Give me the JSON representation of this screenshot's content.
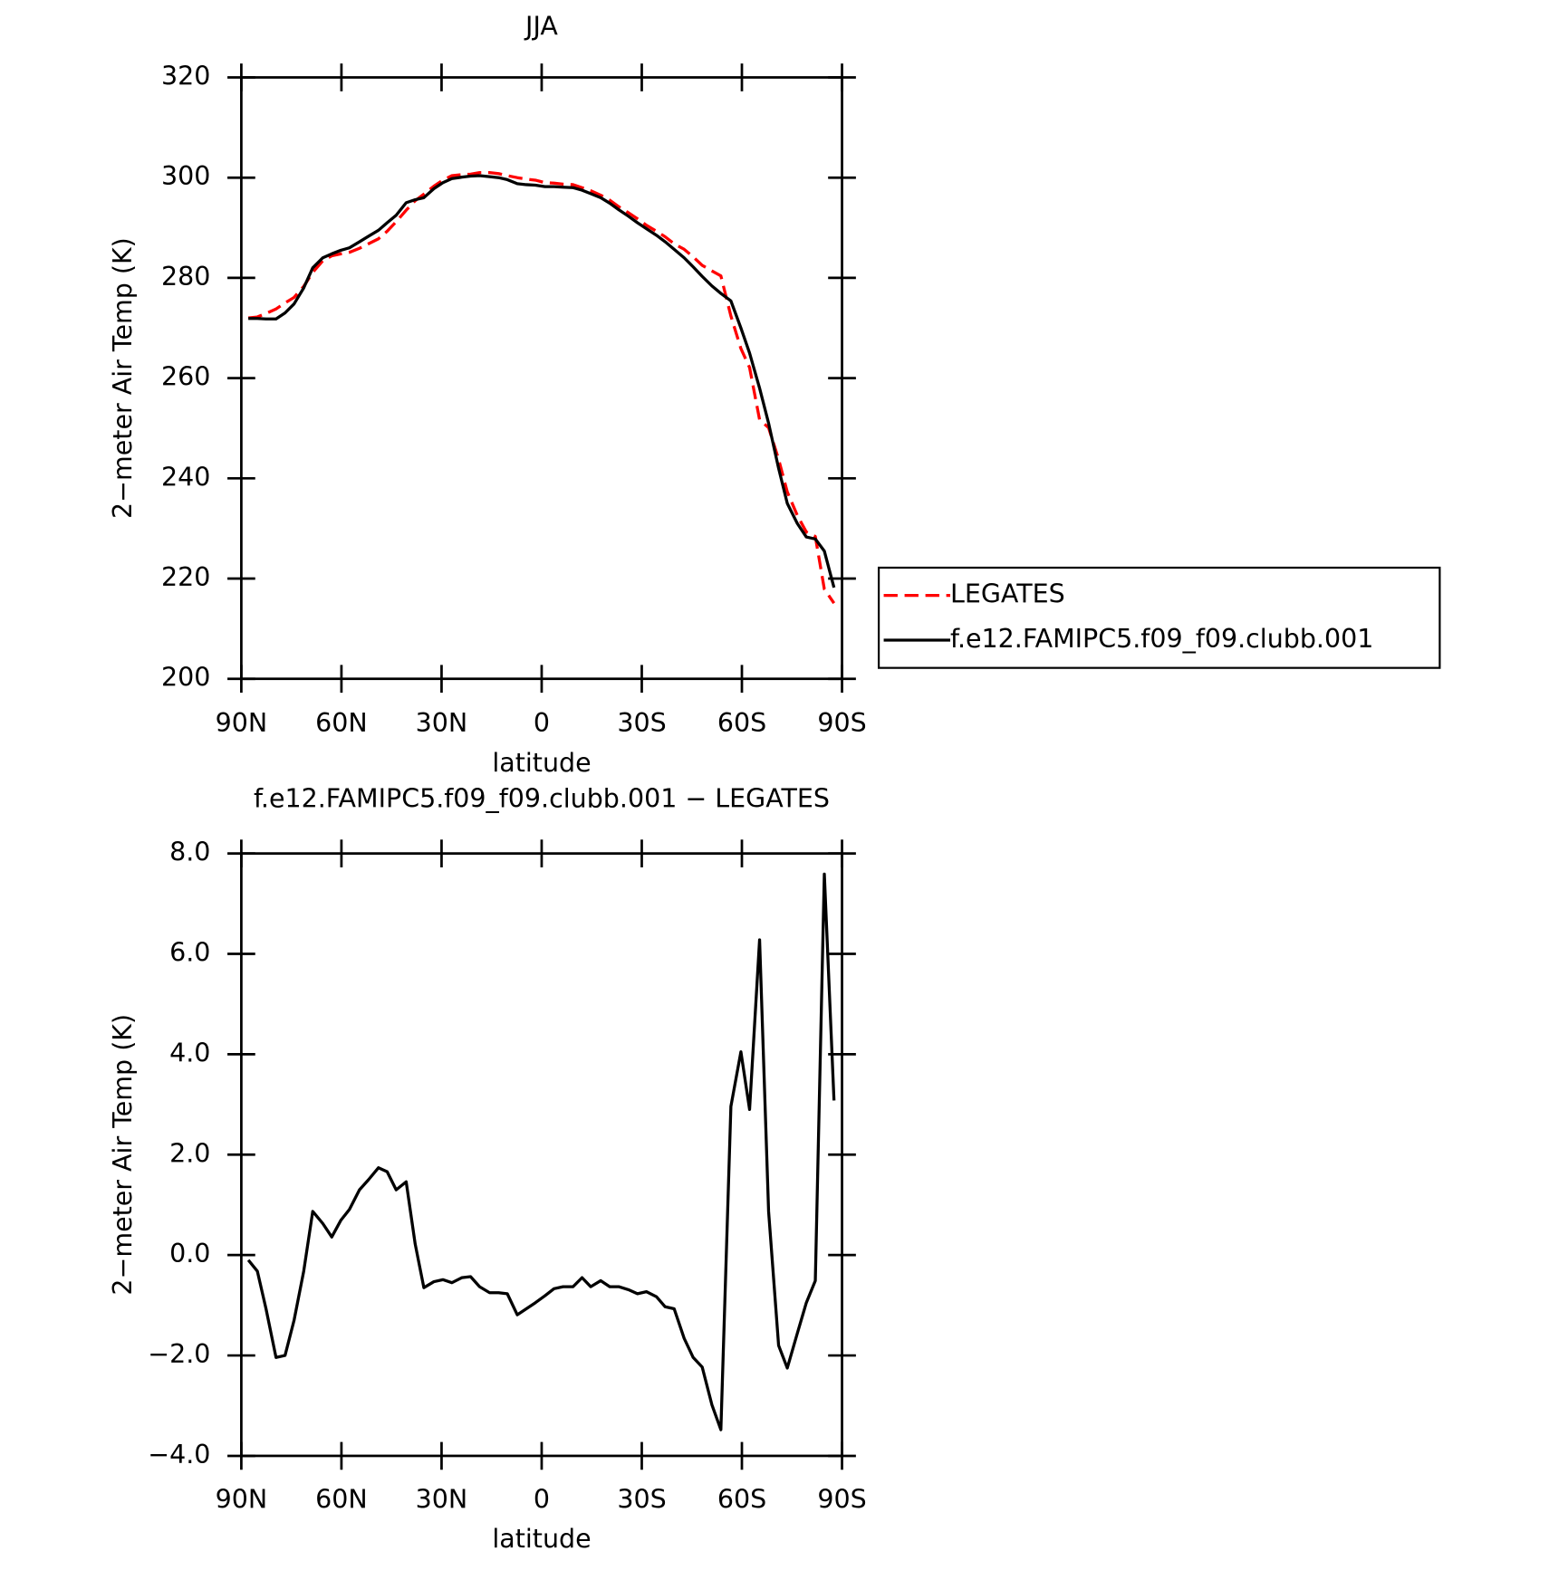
{
  "chart_data": [
    {
      "type": "line",
      "title": "JJA",
      "xlabel": "latitude",
      "ylabel": "2−meter Air Temp (K)",
      "x": [
        87.9,
        85.2,
        82.6,
        79.6,
        76.9,
        74.2,
        71.3,
        68.6,
        65.6,
        62.9,
        60.2,
        57.6,
        54.6,
        51.9,
        48.9,
        46.3,
        43.6,
        40.6,
        37.9,
        35.3,
        32.3,
        29.6,
        26.9,
        23.9,
        21.3,
        18.6,
        15.6,
        12.9,
        10.3,
        7.3,
        4.6,
        1.9,
        -1.0,
        -3.7,
        -6.4,
        -9.4,
        -12.1,
        -14.7,
        -17.7,
        -20.4,
        -23.1,
        -26.0,
        -28.7,
        -31.4,
        -34.4,
        -37.0,
        -39.7,
        -42.7,
        -45.4,
        -48.1,
        -51.0,
        -53.7,
        -56.7,
        -59.7,
        -62.3,
        -65.3,
        -68.0,
        -71.0,
        -73.6,
        -76.6,
        -79.3,
        -82.0,
        -84.7,
        -87.6
      ],
      "series": [
        {
          "name": "LEGATES",
          "color": "#ff0000",
          "dash": true,
          "values": [
            272.0,
            272.2,
            272.9,
            273.8,
            275.0,
            276.1,
            278.3,
            281.1,
            283.4,
            284.4,
            284.8,
            285.1,
            285.9,
            286.8,
            287.8,
            289.3,
            291.2,
            293.5,
            295.4,
            296.7,
            298.3,
            299.5,
            300.4,
            300.6,
            300.7,
            301.0,
            301.0,
            300.8,
            300.4,
            300.0,
            299.7,
            299.5,
            299.0,
            298.9,
            298.7,
            298.6,
            298.0,
            297.4,
            296.5,
            295.5,
            294.2,
            293.0,
            291.8,
            290.5,
            289.3,
            288.2,
            286.8,
            285.7,
            284.2,
            282.5,
            281.4,
            280.4,
            272.4,
            265.9,
            262.1,
            251.7,
            250.1,
            243.8,
            237.3,
            232.6,
            229.3,
            228.4,
            217.9,
            215.1
          ]
        },
        {
          "name": "f.e12.FAMIPC5.f09_f09.clubb.001",
          "color": "#000000",
          "dash": false,
          "values": [
            271.9,
            271.9,
            271.8,
            271.8,
            273.0,
            274.8,
            278.0,
            282.0,
            284.0,
            284.8,
            285.5,
            286.0,
            287.2,
            288.3,
            289.5,
            291.0,
            292.5,
            295.0,
            295.6,
            296.0,
            297.8,
            299.0,
            299.8,
            300.1,
            300.3,
            300.4,
            300.2,
            300.0,
            299.6,
            298.8,
            298.6,
            298.5,
            298.2,
            298.2,
            298.1,
            298.0,
            297.5,
            296.8,
            296.0,
            294.9,
            293.6,
            292.3,
            291.0,
            289.8,
            288.5,
            287.2,
            285.7,
            284.0,
            282.2,
            280.3,
            278.4,
            276.9,
            275.4,
            270.0,
            265.0,
            258.0,
            251.0,
            242.0,
            235.0,
            231.0,
            228.3,
            227.9,
            225.5,
            218.2
          ]
        }
      ],
      "xlim": [
        90,
        -90
      ],
      "xticks": [
        {
          "value": 90,
          "label": "90N"
        },
        {
          "value": 60,
          "label": "60N"
        },
        {
          "value": 30,
          "label": "30N"
        },
        0,
        {
          "value": -30,
          "label": "30S"
        },
        {
          "value": -60,
          "label": "60S"
        },
        {
          "value": -90,
          "label": "90S"
        }
      ],
      "ylim": [
        200,
        320
      ],
      "yticks": [
        200,
        220,
        240,
        260,
        280,
        300,
        320
      ],
      "legend": "right"
    },
    {
      "type": "line",
      "title": "f.e12.FAMIPC5.f09_f09.clubb.001 − LEGATES",
      "xlabel": "latitude",
      "ylabel": "2−meter Air Temp (K)",
      "x": [
        87.9,
        85.2,
        82.6,
        79.6,
        76.9,
        74.2,
        71.3,
        68.6,
        65.6,
        62.9,
        60.2,
        57.6,
        54.6,
        51.9,
        48.9,
        46.3,
        43.6,
        40.6,
        37.9,
        35.3,
        32.3,
        29.6,
        26.9,
        23.9,
        21.3,
        18.6,
        15.6,
        12.9,
        10.3,
        7.3,
        4.6,
        1.9,
        -1.0,
        -3.7,
        -6.4,
        -9.4,
        -12.1,
        -14.7,
        -17.7,
        -20.4,
        -23.1,
        -26.0,
        -28.7,
        -31.4,
        -34.4,
        -37.0,
        -39.7,
        -42.7,
        -45.4,
        -48.1,
        -51.0,
        -53.7,
        -56.7,
        -59.7,
        -62.3,
        -65.3,
        -68.0,
        -71.0,
        -73.6,
        -76.6,
        -79.3,
        -82.0,
        -84.7,
        -87.6
      ],
      "series": [
        {
          "color": "#000000",
          "dash": false,
          "values": [
            -0.1,
            -0.32,
            -1.07,
            -2.04,
            -2.0,
            -1.3,
            -0.32,
            0.87,
            0.63,
            0.36,
            0.69,
            0.91,
            1.3,
            1.5,
            1.74,
            1.66,
            1.3,
            1.46,
            0.22,
            -0.65,
            -0.53,
            -0.49,
            -0.55,
            -0.45,
            -0.43,
            -0.63,
            -0.75,
            -0.75,
            -0.77,
            -1.19,
            -1.07,
            -0.95,
            -0.81,
            -0.67,
            -0.63,
            -0.63,
            -0.45,
            -0.63,
            -0.51,
            -0.63,
            -0.63,
            -0.69,
            -0.77,
            -0.73,
            -0.83,
            -1.03,
            -1.07,
            -1.66,
            -2.04,
            -2.23,
            -2.98,
            -3.48,
            2.96,
            4.05,
            2.9,
            6.28,
            0.87,
            -1.8,
            -2.25,
            -1.56,
            -0.95,
            -0.51,
            7.59,
            3.08
          ]
        }
      ],
      "xlim": [
        90,
        -90
      ],
      "xticks": [
        {
          "value": 90,
          "label": "90N"
        },
        {
          "value": 60,
          "label": "60N"
        },
        {
          "value": 30,
          "label": "30N"
        },
        0,
        {
          "value": -30,
          "label": "30S"
        },
        {
          "value": -60,
          "label": "60S"
        },
        {
          "value": -90,
          "label": "90S"
        }
      ],
      "ylim": [
        -4,
        8
      ],
      "yticks": [
        {
          "value": -4,
          "label": "−4.0"
        },
        {
          "value": -2,
          "label": "−2.0"
        },
        {
          "value": 0,
          "label": "0.0"
        },
        {
          "value": 2,
          "label": "2.0"
        },
        {
          "value": 4,
          "label": "4.0"
        },
        {
          "value": 6,
          "label": "6.0"
        },
        {
          "value": 8,
          "label": "8.0"
        }
      ]
    }
  ]
}
